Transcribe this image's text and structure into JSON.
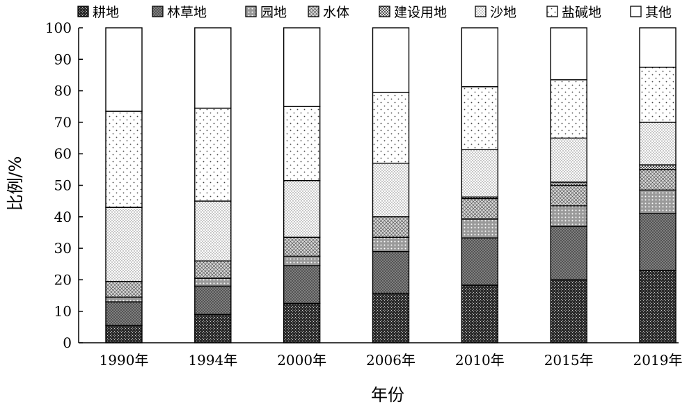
{
  "chart_data": {
    "type": "bar",
    "stacked": true,
    "title": "",
    "xlabel": "年份",
    "ylabel": "比例/%",
    "ylim": [
      0,
      100
    ],
    "yticks": [
      0,
      10,
      20,
      30,
      40,
      50,
      60,
      70,
      80,
      90,
      100
    ],
    "grid": false,
    "legend_position": "top",
    "categories": [
      "1990年",
      "1994年",
      "2000年",
      "2006年",
      "2010年",
      "2015年",
      "2019年"
    ],
    "series": [
      {
        "name": "耕地",
        "pattern": "dense-dark",
        "values": [
          5.5,
          9.0,
          12.5,
          15.7,
          18.3,
          20.0,
          23.0
        ]
      },
      {
        "name": "林草地",
        "pattern": "crosshatch-dark",
        "values": [
          7.5,
          9.0,
          12.0,
          13.3,
          15.0,
          17.0,
          18.0
        ]
      },
      {
        "name": "园地",
        "pattern": "dots-medium",
        "values": [
          1.5,
          2.5,
          3.0,
          4.5,
          6.0,
          6.5,
          7.5
        ]
      },
      {
        "name": "水体",
        "pattern": "crosshatch-light",
        "values": [
          5.0,
          5.5,
          6.0,
          6.5,
          6.5,
          6.5,
          6.5
        ]
      },
      {
        "name": "建设用地",
        "pattern": "checker",
        "values": [
          0.0,
          0.0,
          0.0,
          0.0,
          0.5,
          1.0,
          1.5
        ]
      },
      {
        "name": "沙地",
        "pattern": "dots-fine",
        "values": [
          23.5,
          19.0,
          18.0,
          17.0,
          15.0,
          14.0,
          13.5
        ]
      },
      {
        "name": "盐碱地",
        "pattern": "dots-sparse",
        "values": [
          30.5,
          29.5,
          23.5,
          22.5,
          20.0,
          18.5,
          17.5
        ]
      },
      {
        "name": "其他",
        "pattern": "empty",
        "values": [
          26.5,
          25.5,
          25.0,
          20.5,
          18.7,
          16.5,
          12.5
        ]
      }
    ]
  }
}
